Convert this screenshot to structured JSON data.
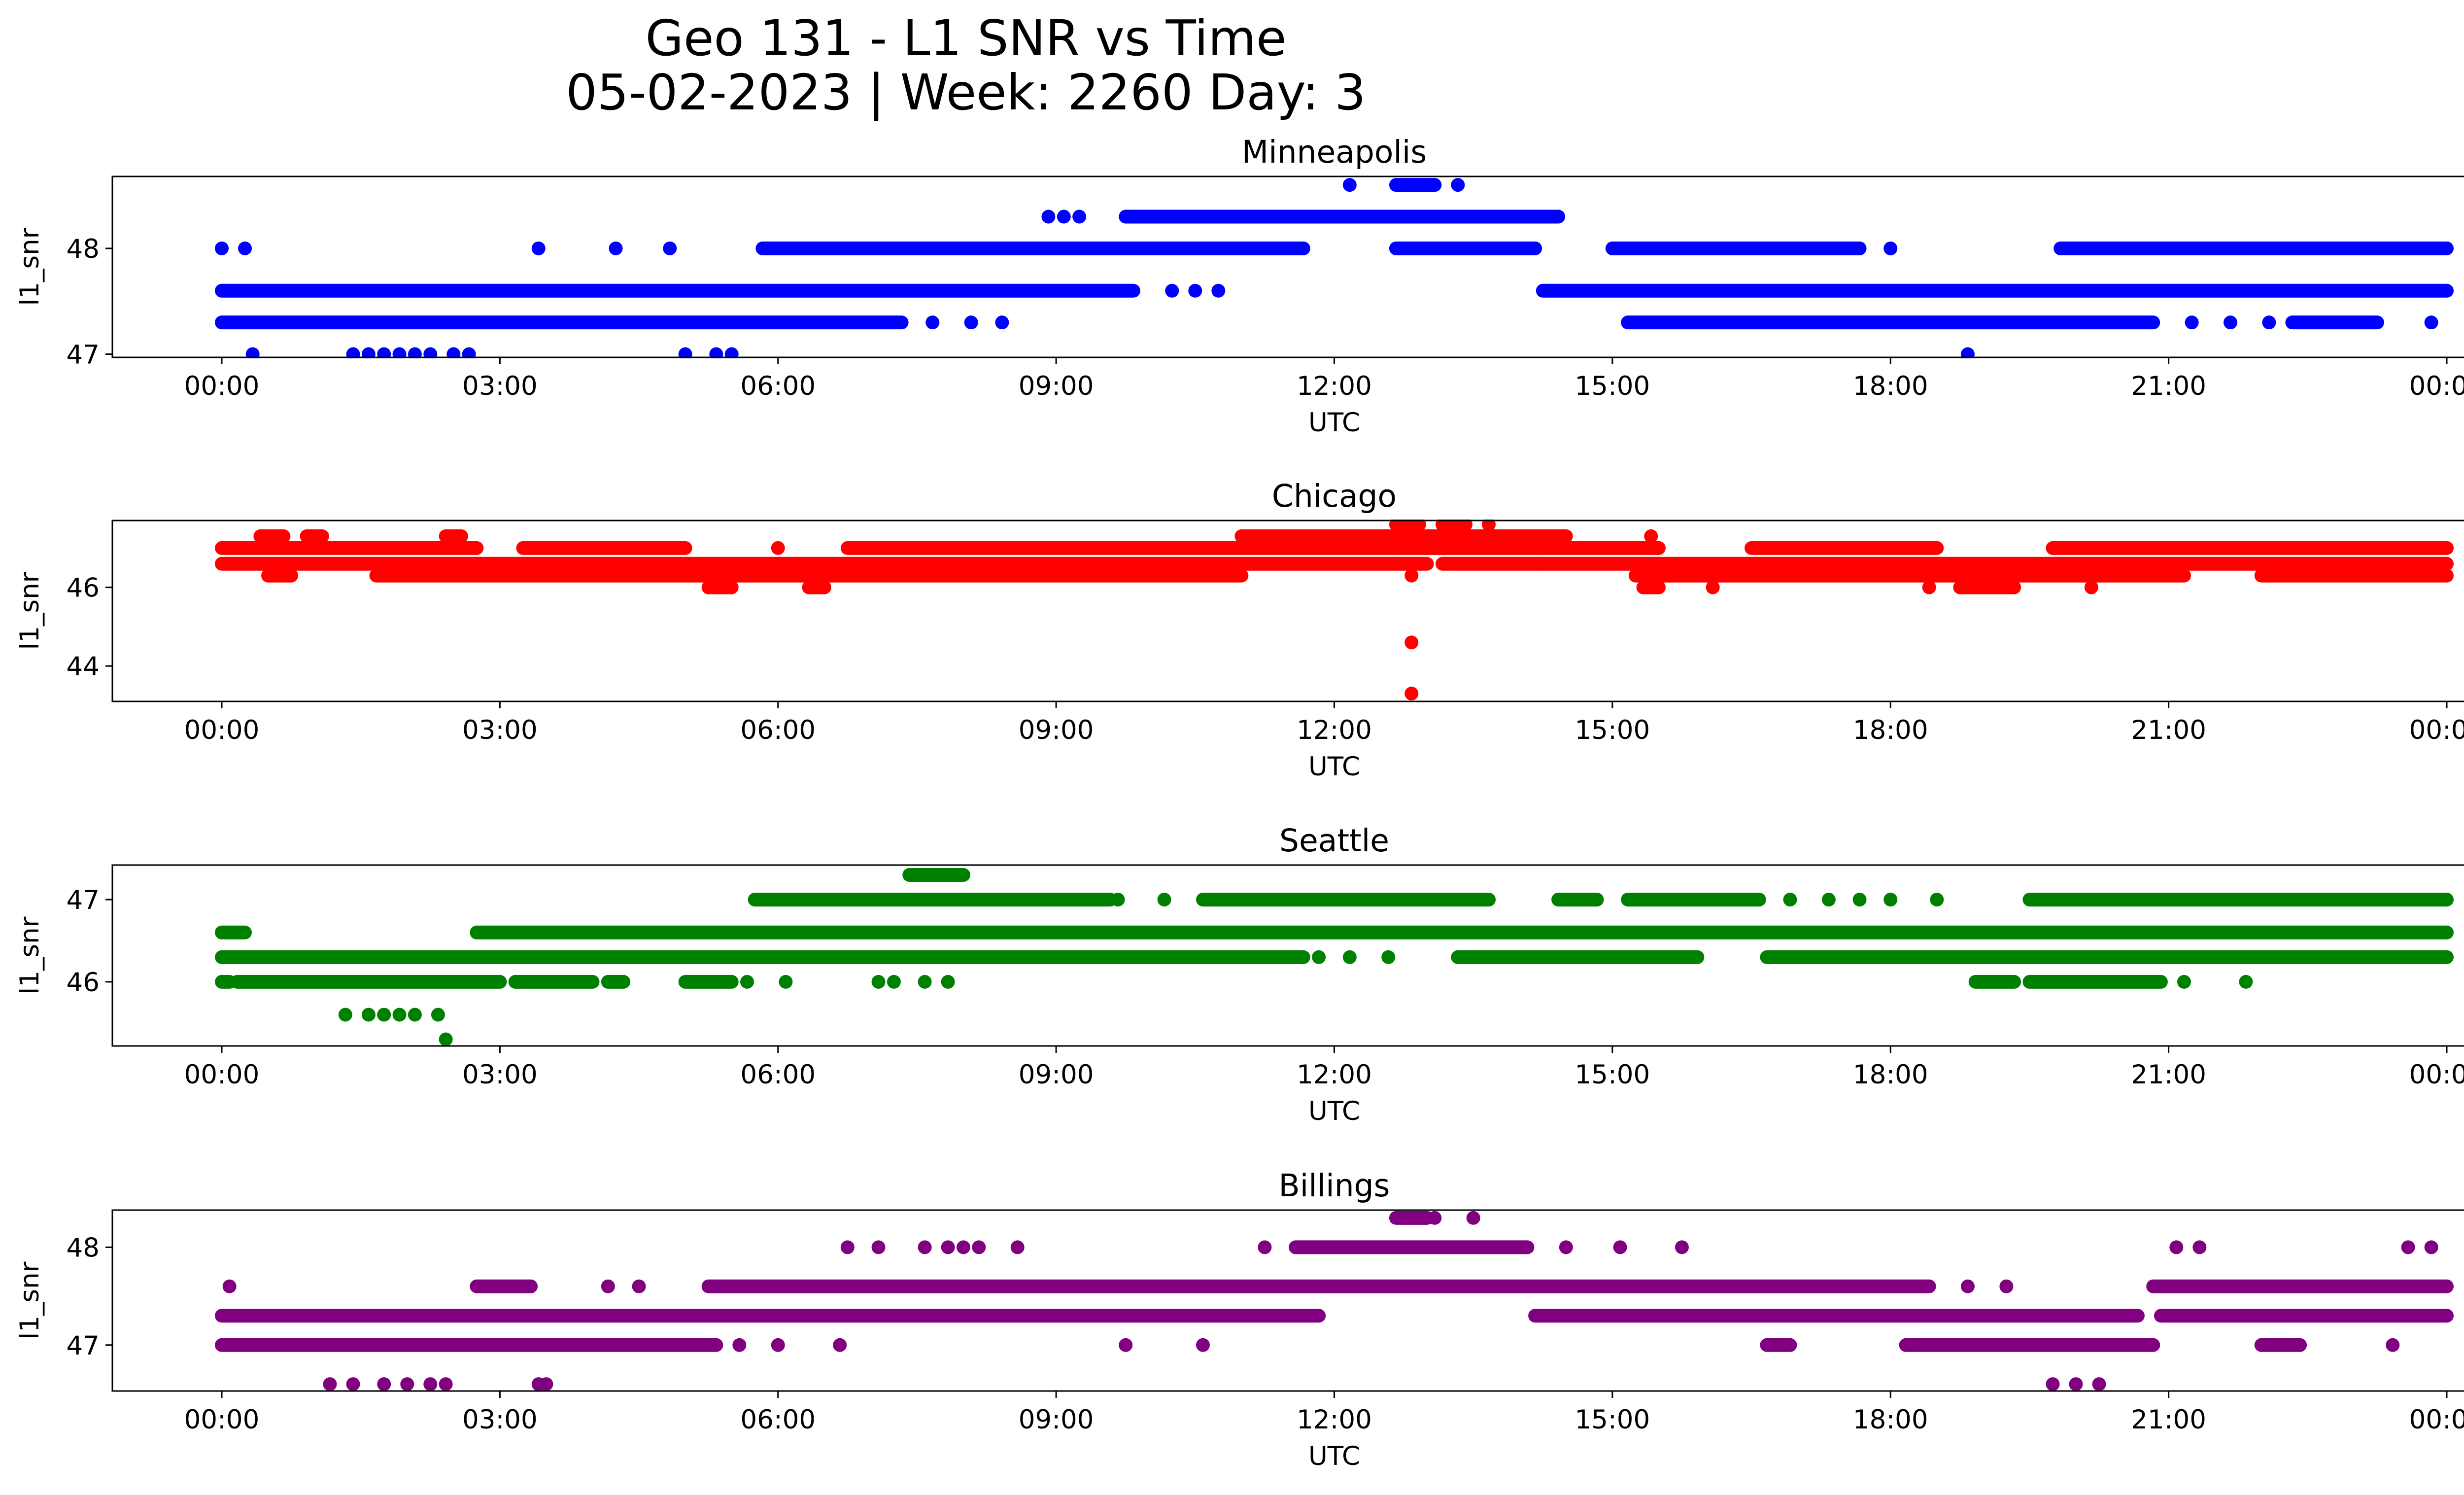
{
  "figure": {
    "title_line1": "Geo 131 - L1 SNR vs Time",
    "title_line2": "05-02-2023 | Week: 2260 Day: 3"
  },
  "chart_data": [
    {
      "type": "scatter",
      "title": "Minneapolis",
      "xlabel": "UTC",
      "ylabel": "l1_snr",
      "color": "#0000ff",
      "xticks": [
        "00:00",
        "03:00",
        "06:00",
        "09:00",
        "12:00",
        "15:00",
        "18:00",
        "21:00",
        "00:00"
      ],
      "xlim": [
        "00:00",
        "24:00"
      ],
      "yticks": [
        47,
        48
      ],
      "ylim": [
        46.97,
        48.68
      ],
      "bands": [
        {
          "y": 47.3,
          "segments": [
            [
              "00:00",
              "07:20"
            ],
            [
              "15:10",
              "20:50"
            ],
            [
              "22:20",
              "23:15"
            ]
          ]
        },
        {
          "y": 47.6,
          "segments": [
            [
              "00:00",
              "09:50"
            ],
            [
              "14:15",
              "24:00"
            ]
          ]
        },
        {
          "y": 48.0,
          "segments": [
            [
              "05:50",
              "11:40"
            ],
            [
              "12:40",
              "14:10"
            ],
            [
              "15:00",
              "17:40"
            ],
            [
              "19:50",
              "24:00"
            ]
          ]
        },
        {
          "y": 48.3,
          "segments": [
            [
              "09:45",
              "14:25"
            ]
          ]
        },
        {
          "y": 48.6,
          "segments": [
            [
              "12:40",
              "13:05"
            ]
          ]
        }
      ],
      "points": [
        {
          "x": "00:00",
          "y": 48.0
        },
        {
          "x": "00:15",
          "y": 48.0
        },
        {
          "x": "00:20",
          "y": 47.0
        },
        {
          "x": "01:25",
          "y": 47.0
        },
        {
          "x": "01:35",
          "y": 47.0
        },
        {
          "x": "01:45",
          "y": 47.0
        },
        {
          "x": "01:55",
          "y": 47.0
        },
        {
          "x": "02:05",
          "y": 47.0
        },
        {
          "x": "02:15",
          "y": 47.0
        },
        {
          "x": "02:30",
          "y": 47.0
        },
        {
          "x": "02:40",
          "y": 47.0
        },
        {
          "x": "03:25",
          "y": 48.0
        },
        {
          "x": "04:15",
          "y": 48.0
        },
        {
          "x": "04:50",
          "y": 48.0
        },
        {
          "x": "05:00",
          "y": 47.0
        },
        {
          "x": "05:20",
          "y": 47.0
        },
        {
          "x": "05:30",
          "y": 47.0
        },
        {
          "x": "07:40",
          "y": 47.3
        },
        {
          "x": "08:05",
          "y": 47.3
        },
        {
          "x": "08:25",
          "y": 47.3
        },
        {
          "x": "08:55",
          "y": 48.3
        },
        {
          "x": "09:05",
          "y": 48.3
        },
        {
          "x": "09:15",
          "y": 48.3
        },
        {
          "x": "10:15",
          "y": 47.6
        },
        {
          "x": "10:30",
          "y": 47.6
        },
        {
          "x": "10:45",
          "y": 47.6
        },
        {
          "x": "12:10",
          "y": 48.6
        },
        {
          "x": "13:20",
          "y": 48.6
        },
        {
          "x": "18:00",
          "y": 48.0
        },
        {
          "x": "18:50",
          "y": 47.0
        },
        {
          "x": "21:15",
          "y": 47.3
        },
        {
          "x": "21:40",
          "y": 47.3
        },
        {
          "x": "22:05",
          "y": 47.3
        },
        {
          "x": "22:25",
          "y": 48.0
        },
        {
          "x": "23:50",
          "y": 47.3
        }
      ]
    },
    {
      "type": "scatter",
      "title": "Chicago",
      "xlabel": "UTC",
      "ylabel": "l1_snr",
      "color": "#ff0000",
      "xticks": [
        "00:00",
        "03:00",
        "06:00",
        "09:00",
        "12:00",
        "15:00",
        "18:00",
        "21:00",
        "00:00"
      ],
      "xlim": [
        "00:00",
        "24:00"
      ],
      "yticks": [
        44,
        46
      ],
      "ylim": [
        43.1,
        47.7
      ],
      "bands": [
        {
          "y": 46.0,
          "segments": [
            [
              "05:15",
              "05:30"
            ],
            [
              "06:20",
              "06:30"
            ],
            [
              "15:20",
              "15:30"
            ],
            [
              "18:45",
              "19:20"
            ]
          ]
        },
        {
          "y": 46.3,
          "segments": [
            [
              "00:30",
              "00:45"
            ],
            [
              "01:40",
              "11:00"
            ],
            [
              "15:15",
              "21:10"
            ],
            [
              "22:00",
              "24:00"
            ]
          ]
        },
        {
          "y": 46.6,
          "segments": [
            [
              "00:00",
              "13:00"
            ],
            [
              "13:10",
              "24:00"
            ]
          ]
        },
        {
          "y": 47.0,
          "segments": [
            [
              "00:00",
              "02:45"
            ],
            [
              "03:15",
              "05:00"
            ],
            [
              "06:45",
              "15:30"
            ],
            [
              "16:30",
              "18:30"
            ],
            [
              "19:45",
              "24:00"
            ]
          ]
        },
        {
          "y": 47.3,
          "segments": [
            [
              "00:25",
              "00:40"
            ],
            [
              "00:55",
              "01:05"
            ],
            [
              "02:25",
              "02:35"
            ],
            [
              "11:00",
              "14:30"
            ]
          ]
        },
        {
          "y": 47.6,
          "segments": [
            [
              "12:40",
              "12:55"
            ],
            [
              "13:10",
              "13:25"
            ]
          ]
        }
      ],
      "points": [
        {
          "x": "06:00",
          "y": 47.0
        },
        {
          "x": "10:20",
          "y": 46.3
        },
        {
          "x": "12:40",
          "y": 46.6
        },
        {
          "x": "12:50",
          "y": 46.3
        },
        {
          "x": "12:50",
          "y": 44.6
        },
        {
          "x": "12:50",
          "y": 43.3
        },
        {
          "x": "13:40",
          "y": 47.6
        },
        {
          "x": "14:15",
          "y": 46.6
        },
        {
          "x": "15:25",
          "y": 47.3
        },
        {
          "x": "16:05",
          "y": 46.0
        },
        {
          "x": "18:25",
          "y": 46.0
        },
        {
          "x": "20:10",
          "y": 46.0
        }
      ]
    },
    {
      "type": "scatter",
      "title": "Seattle",
      "xlabel": "UTC",
      "ylabel": "l1_snr",
      "color": "#008000",
      "xticks": [
        "00:00",
        "03:00",
        "06:00",
        "09:00",
        "12:00",
        "15:00",
        "18:00",
        "21:00",
        "00:00"
      ],
      "xlim": [
        "00:00",
        "24:00"
      ],
      "yticks": [
        46,
        47
      ],
      "ylim": [
        45.22,
        47.42
      ],
      "bands": [
        {
          "y": 46.0,
          "segments": [
            [
              "00:00",
              "00:05"
            ],
            [
              "00:10",
              "03:00"
            ],
            [
              "03:10",
              "04:00"
            ],
            [
              "04:10",
              "04:20"
            ],
            [
              "05:00",
              "05:30"
            ],
            [
              "18:55",
              "19:20"
            ],
            [
              "19:30",
              "20:55"
            ]
          ]
        },
        {
          "y": 46.3,
          "segments": [
            [
              "00:00",
              "11:40"
            ],
            [
              "13:20",
              "15:55"
            ],
            [
              "16:40",
              "24:00"
            ]
          ]
        },
        {
          "y": 46.6,
          "segments": [
            [
              "00:00",
              "00:15"
            ],
            [
              "02:45",
              "24:00"
            ]
          ]
        },
        {
          "y": 47.0,
          "segments": [
            [
              "05:45",
              "09:35"
            ],
            [
              "10:35",
              "13:40"
            ],
            [
              "14:25",
              "14:50"
            ],
            [
              "15:10",
              "16:35"
            ],
            [
              "19:30",
              "24:00"
            ]
          ]
        },
        {
          "y": 47.3,
          "segments": [
            [
              "07:25",
              "08:00"
            ]
          ]
        }
      ],
      "points": [
        {
          "x": "01:20",
          "y": 45.6
        },
        {
          "x": "01:35",
          "y": 45.6
        },
        {
          "x": "01:45",
          "y": 45.6
        },
        {
          "x": "01:55",
          "y": 45.6
        },
        {
          "x": "02:05",
          "y": 45.6
        },
        {
          "x": "02:20",
          "y": 45.6
        },
        {
          "x": "02:25",
          "y": 45.3
        },
        {
          "x": "05:40",
          "y": 46.0
        },
        {
          "x": "06:05",
          "y": 46.0
        },
        {
          "x": "07:05",
          "y": 46.0
        },
        {
          "x": "07:15",
          "y": 46.0
        },
        {
          "x": "07:35",
          "y": 46.0
        },
        {
          "x": "07:50",
          "y": 46.0
        },
        {
          "x": "09:40",
          "y": 47.0
        },
        {
          "x": "10:10",
          "y": 47.0
        },
        {
          "x": "11:50",
          "y": 46.3
        },
        {
          "x": "12:10",
          "y": 46.3
        },
        {
          "x": "12:35",
          "y": 46.3
        },
        {
          "x": "16:55",
          "y": 47.0
        },
        {
          "x": "17:20",
          "y": 47.0
        },
        {
          "x": "17:40",
          "y": 47.0
        },
        {
          "x": "18:00",
          "y": 47.0
        },
        {
          "x": "18:30",
          "y": 47.0
        },
        {
          "x": "21:10",
          "y": 46.0
        },
        {
          "x": "21:10",
          "y": 47.0
        },
        {
          "x": "21:35",
          "y": 47.0
        },
        {
          "x": "21:50",
          "y": 46.0
        }
      ]
    },
    {
      "type": "scatter",
      "title": "Billings",
      "xlabel": "UTC",
      "ylabel": "l1_snr",
      "color": "#800080",
      "xticks": [
        "00:00",
        "03:00",
        "06:00",
        "09:00",
        "12:00",
        "15:00",
        "18:00",
        "21:00",
        "00:00"
      ],
      "xlim": [
        "00:00",
        "24:00"
      ],
      "yticks": [
        47,
        48
      ],
      "ylim": [
        46.53,
        48.38
      ],
      "bands": [
        {
          "y": 47.0,
          "segments": [
            [
              "00:00",
              "05:20"
            ],
            [
              "16:40",
              "16:55"
            ],
            [
              "18:10",
              "20:50"
            ],
            [
              "22:00",
              "22:25"
            ]
          ]
        },
        {
          "y": 47.3,
          "segments": [
            [
              "00:00",
              "11:50"
            ],
            [
              "14:10",
              "20:40"
            ],
            [
              "20:55",
              "24:00"
            ]
          ]
        },
        {
          "y": 47.6,
          "segments": [
            [
              "02:45",
              "03:20"
            ],
            [
              "05:15",
              "18:25"
            ],
            [
              "20:50",
              "24:00"
            ]
          ]
        },
        {
          "y": 48.0,
          "segments": [
            [
              "11:35",
              "14:05"
            ]
          ]
        },
        {
          "y": 48.3,
          "segments": [
            [
              "12:40",
              "13:00"
            ]
          ]
        }
      ],
      "points": [
        {
          "x": "00:05",
          "y": 47.6
        },
        {
          "x": "01:10",
          "y": 46.6
        },
        {
          "x": "01:25",
          "y": 46.6
        },
        {
          "x": "01:45",
          "y": 46.6
        },
        {
          "x": "02:00",
          "y": 46.6
        },
        {
          "x": "02:15",
          "y": 46.6
        },
        {
          "x": "02:25",
          "y": 46.6
        },
        {
          "x": "03:25",
          "y": 46.6
        },
        {
          "x": "03:30",
          "y": 46.6
        },
        {
          "x": "04:10",
          "y": 47.6
        },
        {
          "x": "04:30",
          "y": 47.6
        },
        {
          "x": "05:35",
          "y": 47.0
        },
        {
          "x": "06:00",
          "y": 47.0
        },
        {
          "x": "06:40",
          "y": 47.0
        },
        {
          "x": "06:45",
          "y": 48.0
        },
        {
          "x": "07:05",
          "y": 48.0
        },
        {
          "x": "07:35",
          "y": 48.0
        },
        {
          "x": "07:50",
          "y": 48.0
        },
        {
          "x": "08:00",
          "y": 48.0
        },
        {
          "x": "08:10",
          "y": 48.0
        },
        {
          "x": "08:35",
          "y": 48.0
        },
        {
          "x": "09:45",
          "y": 47.0
        },
        {
          "x": "10:35",
          "y": 47.0
        },
        {
          "x": "11:15",
          "y": 48.0
        },
        {
          "x": "13:05",
          "y": 48.3
        },
        {
          "x": "13:30",
          "y": 48.3
        },
        {
          "x": "14:30",
          "y": 48.0
        },
        {
          "x": "15:05",
          "y": 48.0
        },
        {
          "x": "15:45",
          "y": 48.0
        },
        {
          "x": "18:50",
          "y": 47.6
        },
        {
          "x": "19:15",
          "y": 47.6
        },
        {
          "x": "19:45",
          "y": 46.6
        },
        {
          "x": "20:00",
          "y": 46.6
        },
        {
          "x": "20:15",
          "y": 46.6
        },
        {
          "x": "21:05",
          "y": 48.0
        },
        {
          "x": "21:20",
          "y": 48.0
        },
        {
          "x": "23:25",
          "y": 47.0
        },
        {
          "x": "23:35",
          "y": 48.0
        },
        {
          "x": "23:50",
          "y": 48.0
        }
      ]
    }
  ]
}
